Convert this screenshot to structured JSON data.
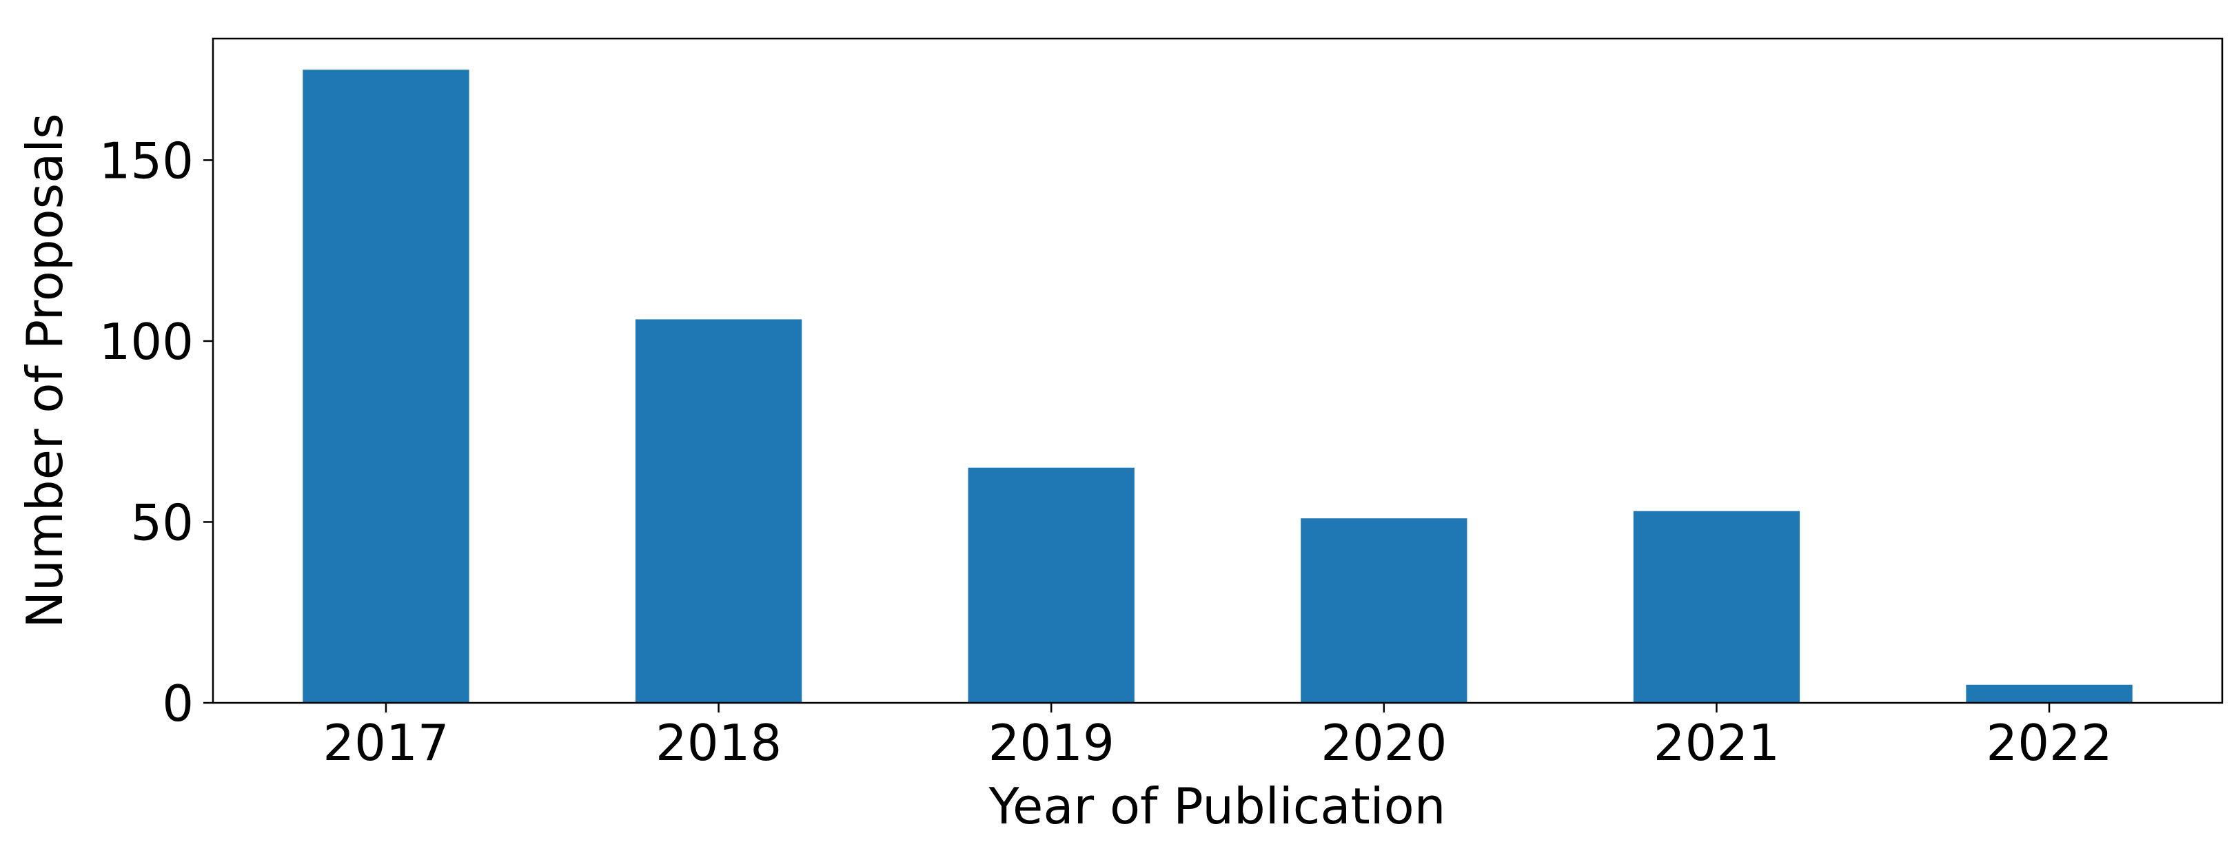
{
  "chart_data": {
    "type": "bar",
    "title": "",
    "xlabel": "Year of Publication",
    "ylabel": "Number of Proposals",
    "categories": [
      "2017",
      "2018",
      "2019",
      "2020",
      "2021",
      "2022"
    ],
    "values": [
      175,
      106,
      65,
      51,
      53,
      5
    ],
    "ylim": [
      0,
      183.6
    ],
    "yticks": [
      0,
      50,
      100,
      150
    ],
    "grid": false,
    "legend": "none",
    "bar_color": "#1f77b4",
    "axis_color": "#000000"
  }
}
